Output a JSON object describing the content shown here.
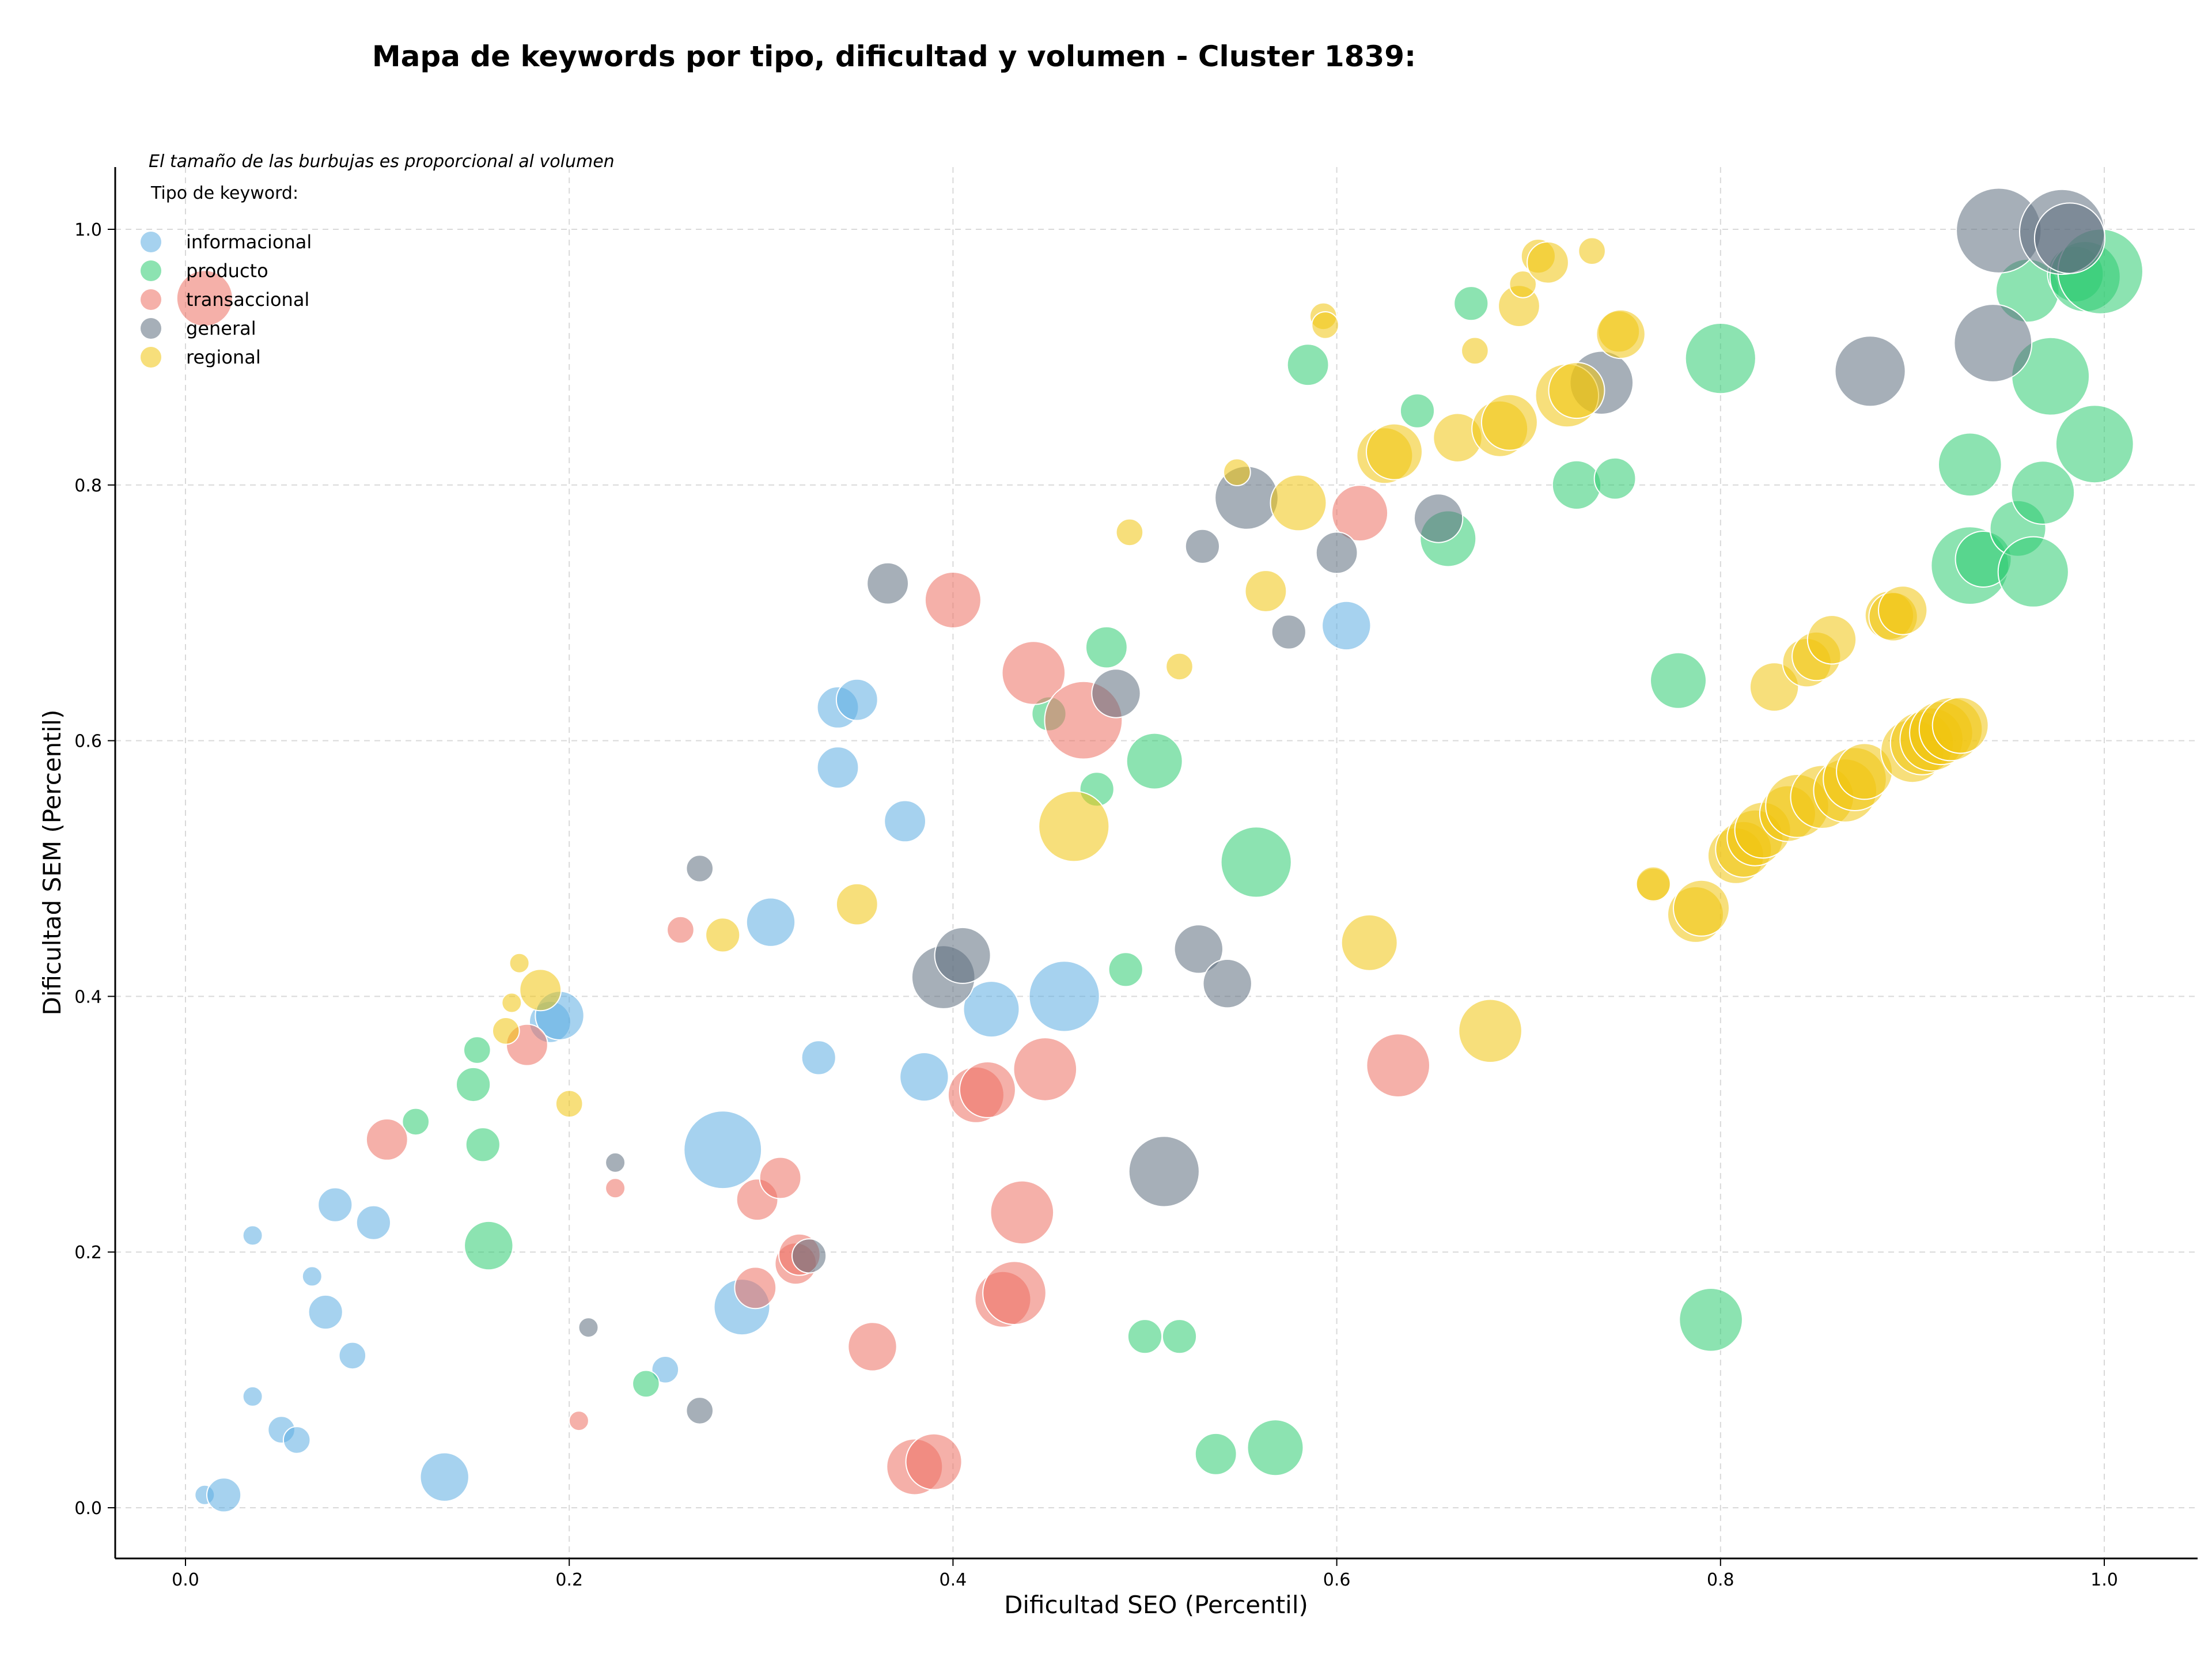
{
  "chart_data": {
    "type": "scatter",
    "title": "Mapa de keywords por tipo, dificultad y volumen - Cluster 1839:",
    "xlabel": "Dificultad SEO (Percentil)",
    "ylabel": "Dificultad SEM (Percentil)",
    "xlim": [
      -0.04,
      1.05
    ],
    "ylim": [
      -0.04,
      1.05
    ],
    "xticks": [
      "0.0",
      "0.2",
      "0.4",
      "0.6",
      "0.8",
      "1.0"
    ],
    "yticks": [
      "0.0",
      "0.2",
      "0.4",
      "0.6",
      "0.8",
      "1.0"
    ],
    "grid": true,
    "legend_title": "Tipo de keyword:",
    "legend_placement": "top-left",
    "note": "El tamaño de las burbujas es proporcional al volumen",
    "series": [
      {
        "name": "informacional",
        "color": "#5DADE2",
        "points": [
          [
            0.01,
            0.01,
            1
          ],
          [
            0.02,
            0.01,
            3
          ],
          [
            0.035,
            0.087,
            1
          ],
          [
            0.05,
            0.061,
            2
          ],
          [
            0.058,
            0.053,
            2
          ],
          [
            0.035,
            0.213,
            1
          ],
          [
            0.066,
            0.181,
            1
          ],
          [
            0.073,
            0.153,
            3
          ],
          [
            0.078,
            0.237,
            3
          ],
          [
            0.087,
            0.119,
            2
          ],
          [
            0.098,
            0.223,
            3
          ],
          [
            0.135,
            0.024,
            5
          ],
          [
            0.19,
            0.38,
            4
          ],
          [
            0.195,
            0.385,
            5
          ],
          [
            0.25,
            0.108,
            2
          ],
          [
            0.28,
            0.28,
            9
          ],
          [
            0.29,
            0.157,
            6
          ],
          [
            0.305,
            0.458,
            5
          ],
          [
            0.33,
            0.352,
            3
          ],
          [
            0.34,
            0.579,
            4
          ],
          [
            0.34,
            0.626,
            4
          ],
          [
            0.35,
            0.632,
            4
          ],
          [
            0.375,
            0.537,
            4
          ],
          [
            0.385,
            0.337,
            5
          ],
          [
            0.42,
            0.39,
            6
          ],
          [
            0.458,
            0.4,
            8
          ],
          [
            0.605,
            0.69,
            5
          ]
        ]
      },
      {
        "name": "producto",
        "color": "#2ECC71",
        "points": [
          [
            0.12,
            0.302,
            2
          ],
          [
            0.15,
            0.331,
            3
          ],
          [
            0.152,
            0.358,
            2
          ],
          [
            0.155,
            0.284,
            3
          ],
          [
            0.158,
            0.205,
            5
          ],
          [
            0.24,
            0.097,
            2
          ],
          [
            0.45,
            0.621,
            3
          ],
          [
            0.475,
            0.562,
            3
          ],
          [
            0.48,
            0.673,
            4
          ],
          [
            0.49,
            0.421,
            3
          ],
          [
            0.5,
            0.134,
            3
          ],
          [
            0.505,
            0.584,
            6
          ],
          [
            0.518,
            0.134,
            3
          ],
          [
            0.537,
            0.042,
            4
          ],
          [
            0.558,
            0.505,
            8
          ],
          [
            0.568,
            0.047,
            6
          ],
          [
            0.585,
            0.894,
            4
          ],
          [
            0.642,
            0.858,
            3
          ],
          [
            0.658,
            0.758,
            6
          ],
          [
            0.67,
            0.942,
            3
          ],
          [
            0.725,
            0.8,
            5
          ],
          [
            0.745,
            0.805,
            4
          ],
          [
            0.778,
            0.647,
            6
          ],
          [
            0.795,
            0.147,
            7
          ],
          [
            0.8,
            0.899,
            8
          ],
          [
            0.93,
            0.816,
            7
          ],
          [
            0.93,
            0.737,
            9
          ],
          [
            0.937,
            0.742,
            6
          ],
          [
            0.955,
            0.766,
            6
          ],
          [
            0.96,
            0.952,
            7
          ],
          [
            0.963,
            0.732,
            8
          ],
          [
            0.968,
            0.794,
            7
          ],
          [
            0.972,
            0.885,
            9
          ],
          [
            0.985,
            0.965,
            6
          ],
          [
            0.99,
            0.963,
            8
          ],
          [
            0.995,
            0.832,
            9
          ],
          [
            0.998,
            0.967,
            10
          ]
        ]
      },
      {
        "name": "transaccional",
        "color": "#EC7063",
        "points": [
          [
            0.01,
            0.946,
            6
          ],
          [
            0.105,
            0.288,
            4
          ],
          [
            0.178,
            0.362,
            4
          ],
          [
            0.205,
            0.068,
            1
          ],
          [
            0.224,
            0.25,
            1
          ],
          [
            0.258,
            0.452,
            2
          ],
          [
            0.297,
            0.172,
            4
          ],
          [
            0.298,
            0.241,
            4
          ],
          [
            0.31,
            0.258,
            4
          ],
          [
            0.318,
            0.191,
            4
          ],
          [
            0.32,
            0.198,
            4
          ],
          [
            0.358,
            0.126,
            5
          ],
          [
            0.38,
            0.032,
            6
          ],
          [
            0.39,
            0.036,
            6
          ],
          [
            0.4,
            0.71,
            6
          ],
          [
            0.412,
            0.323,
            6
          ],
          [
            0.418,
            0.327,
            6
          ],
          [
            0.426,
            0.163,
            6
          ],
          [
            0.432,
            0.168,
            7
          ],
          [
            0.436,
            0.231,
            7
          ],
          [
            0.442,
            0.653,
            7
          ],
          [
            0.448,
            0.343,
            7
          ],
          [
            0.468,
            0.616,
            9
          ],
          [
            0.612,
            0.778,
            6
          ],
          [
            0.632,
            0.346,
            7
          ]
        ]
      },
      {
        "name": "general",
        "color": "#5D6D7E",
        "points": [
          [
            0.21,
            0.141,
            1
          ],
          [
            0.224,
            0.27,
            1
          ],
          [
            0.268,
            0.076,
            2
          ],
          [
            0.268,
            0.5,
            2
          ],
          [
            0.325,
            0.197,
            3
          ],
          [
            0.366,
            0.723,
            4
          ],
          [
            0.395,
            0.415,
            7
          ],
          [
            0.405,
            0.432,
            6
          ],
          [
            0.485,
            0.637,
            5
          ],
          [
            0.51,
            0.263,
            8
          ],
          [
            0.53,
            0.752,
            3
          ],
          [
            0.528,
            0.437,
            5
          ],
          [
            0.543,
            0.41,
            5
          ],
          [
            0.553,
            0.79,
            7
          ],
          [
            0.575,
            0.685,
            3
          ],
          [
            0.6,
            0.747,
            4
          ],
          [
            0.653,
            0.774,
            5
          ],
          [
            0.738,
            0.88,
            7
          ],
          [
            0.878,
            0.889,
            8
          ],
          [
            0.942,
            0.911,
            9
          ],
          [
            0.945,
            0.999,
            10
          ],
          [
            0.978,
            0.998,
            10
          ],
          [
            0.982,
            0.993,
            8
          ]
        ]
      },
      {
        "name": "regional",
        "color": "#F1C40F",
        "points": [
          [
            0.167,
            0.373,
            2
          ],
          [
            0.17,
            0.395,
            1
          ],
          [
            0.174,
            0.426,
            1
          ],
          [
            0.185,
            0.405,
            4
          ],
          [
            0.2,
            0.316,
            2
          ],
          [
            0.28,
            0.448,
            3
          ],
          [
            0.35,
            0.472,
            4
          ],
          [
            0.463,
            0.533,
            8
          ],
          [
            0.492,
            0.763,
            2
          ],
          [
            0.518,
            0.658,
            2
          ],
          [
            0.548,
            0.81,
            2
          ],
          [
            0.563,
            0.717,
            4
          ],
          [
            0.58,
            0.786,
            6
          ],
          [
            0.593,
            0.932,
            2
          ],
          [
            0.594,
            0.925,
            2
          ],
          [
            0.617,
            0.442,
            6
          ],
          [
            0.625,
            0.823,
            6
          ],
          [
            0.63,
            0.826,
            6
          ],
          [
            0.663,
            0.837,
            5
          ],
          [
            0.672,
            0.905,
            2
          ],
          [
            0.68,
            0.373,
            7
          ],
          [
            0.685,
            0.844,
            6
          ],
          [
            0.69,
            0.849,
            6
          ],
          [
            0.695,
            0.94,
            4
          ],
          [
            0.697,
            0.957,
            2
          ],
          [
            0.705,
            0.979,
            3
          ],
          [
            0.71,
            0.974,
            4
          ],
          [
            0.72,
            0.87,
            7
          ],
          [
            0.725,
            0.874,
            6
          ],
          [
            0.733,
            0.983,
            2
          ],
          [
            0.747,
            0.92,
            4
          ],
          [
            0.748,
            0.918,
            5
          ],
          [
            0.765,
            0.487,
            3
          ],
          [
            0.765,
            0.488,
            3
          ],
          [
            0.787,
            0.464,
            6
          ],
          [
            0.79,
            0.469,
            6
          ],
          [
            0.808,
            0.51,
            6
          ],
          [
            0.812,
            0.515,
            6
          ],
          [
            0.818,
            0.524,
            6
          ],
          [
            0.822,
            0.53,
            6
          ],
          [
            0.828,
            0.642,
            5
          ],
          [
            0.835,
            0.543,
            6
          ],
          [
            0.84,
            0.549,
            7
          ],
          [
            0.845,
            0.661,
            5
          ],
          [
            0.85,
            0.666,
            5
          ],
          [
            0.853,
            0.556,
            7
          ],
          [
            0.858,
            0.679,
            5
          ],
          [
            0.865,
            0.561,
            7
          ],
          [
            0.87,
            0.57,
            7
          ],
          [
            0.875,
            0.576,
            6
          ],
          [
            0.888,
            0.698,
            5
          ],
          [
            0.89,
            0.697,
            5
          ],
          [
            0.895,
            0.702,
            5
          ],
          [
            0.9,
            0.592,
            7
          ],
          [
            0.905,
            0.598,
            7
          ],
          [
            0.91,
            0.601,
            7
          ],
          [
            0.915,
            0.606,
            7
          ],
          [
            0.92,
            0.609,
            7
          ],
          [
            0.925,
            0.612,
            6
          ]
        ]
      }
    ]
  }
}
